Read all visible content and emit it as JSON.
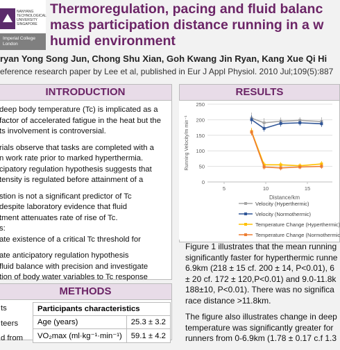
{
  "header": {
    "logo_text": "NANYANG TECHNOLOGICAL UNIVERSITY SINGAPORE",
    "logo_text2": "Imperial College London",
    "title_lines": [
      "Thermoregulation, pacing and fluid balanc",
      "mass participation distance running in a w",
      "humid environment"
    ],
    "authors": "ryan Yong Song Jun, Chong Shu Xian, Goh Kwang Jin Ryan, Kang Xue Qi Hi",
    "reference": "eference research paper by Lee et al, published in Eur J Appl Physiol. 2010 Jul;109(5):887"
  },
  "introduction": {
    "heading": "INTRODUCTION",
    "paragraphs": [
      [
        "deep body temperature (Tc) is implicated as a",
        "factor of accelerated fatigue in the heat but the",
        "ts involvement is controversial."
      ],
      [
        "rials observe that tasks are completed with a",
        "n work rate prior to marked hyperthermia.",
        "cipatory regulation hypothesis suggests that",
        "tensity is regulated before attainment of a"
      ],
      [
        "stion is not a significant predictor of Tc",
        "despite laboratory evidence that fluid",
        "tment attenuates rate of rise of Tc.",
        "s:",
        "ate existence of a critical Tc threshold for"
      ],
      [
        "ate anticipatory regulation hypothesis",
        "fluid balance with precision and investigate",
        "tion of body water variables to Tc response"
      ]
    ]
  },
  "methods": {
    "heading": "METHODS",
    "side_lines": [
      "ts",
      "teers",
      "d from"
    ],
    "table": {
      "title": "Participants characteristics",
      "rows": [
        [
          "Age (years)",
          "25.3 ± 3.2"
        ],
        [
          "VO₂max (ml·kg⁻¹·min⁻¹)",
          "59.1 ± 4.2"
        ]
      ]
    }
  },
  "results": {
    "heading": "RESULTS",
    "paragraphs": [
      [
        "Figure 1 illustrates that the mean running",
        "significantly faster for hyperthermic runne",
        "6.9km (218 ± 15 cf. 200 ± 14, P<0.01), 6",
        "± 20 cf. 172 ± 120,P<0.01) and 9.0-11.8k",
        "188±10, P<0.01). There was no significa",
        "race distance >11.8km."
      ],
      [
        "The figure also illustrates change in deep",
        "temperature was significantly greater for",
        "runners from 0-6.9km (1.78 ± 0.17 c.f 1.3"
      ]
    ]
  },
  "chart_data": {
    "type": "line",
    "y_label": "Running Velocity/m min⁻¹",
    "x_label": "Distance/km",
    "xlim": [
      3,
      18
    ],
    "xticks": [
      5,
      10,
      15
    ],
    "ylim": [
      0,
      250
    ],
    "yticks": [
      0,
      50,
      100,
      150,
      200,
      250
    ],
    "grid": true,
    "x": [
      8.3,
      9.8,
      11.8,
      14.1,
      16.7
    ],
    "series": [
      {
        "name": "Velocity (Hyperthermic)",
        "color": "#a5a5a5",
        "values": [
          205,
          190,
          195,
          198,
          194
        ],
        "errors": [
          18,
          15,
          12,
          10,
          14
        ]
      },
      {
        "name": "Velocity (Normothermic)",
        "color": "#2f5597",
        "values": [
          200,
          172,
          188,
          190,
          187
        ],
        "errors": [
          14,
          10,
          10,
          9,
          10
        ]
      },
      {
        "name": "Temperature Change (Hyperthermic)",
        "color": "#ffc000",
        "values": [
          162,
          55,
          55,
          52,
          58
        ],
        "errors": [
          12,
          10,
          9,
          8,
          9
        ]
      },
      {
        "name": "Temperature Change (Normothermic",
        "color": "#ed7d31",
        "values": [
          160,
          48,
          45,
          48,
          50
        ],
        "errors": [
          10,
          8,
          8,
          7,
          8
        ]
      }
    ]
  }
}
